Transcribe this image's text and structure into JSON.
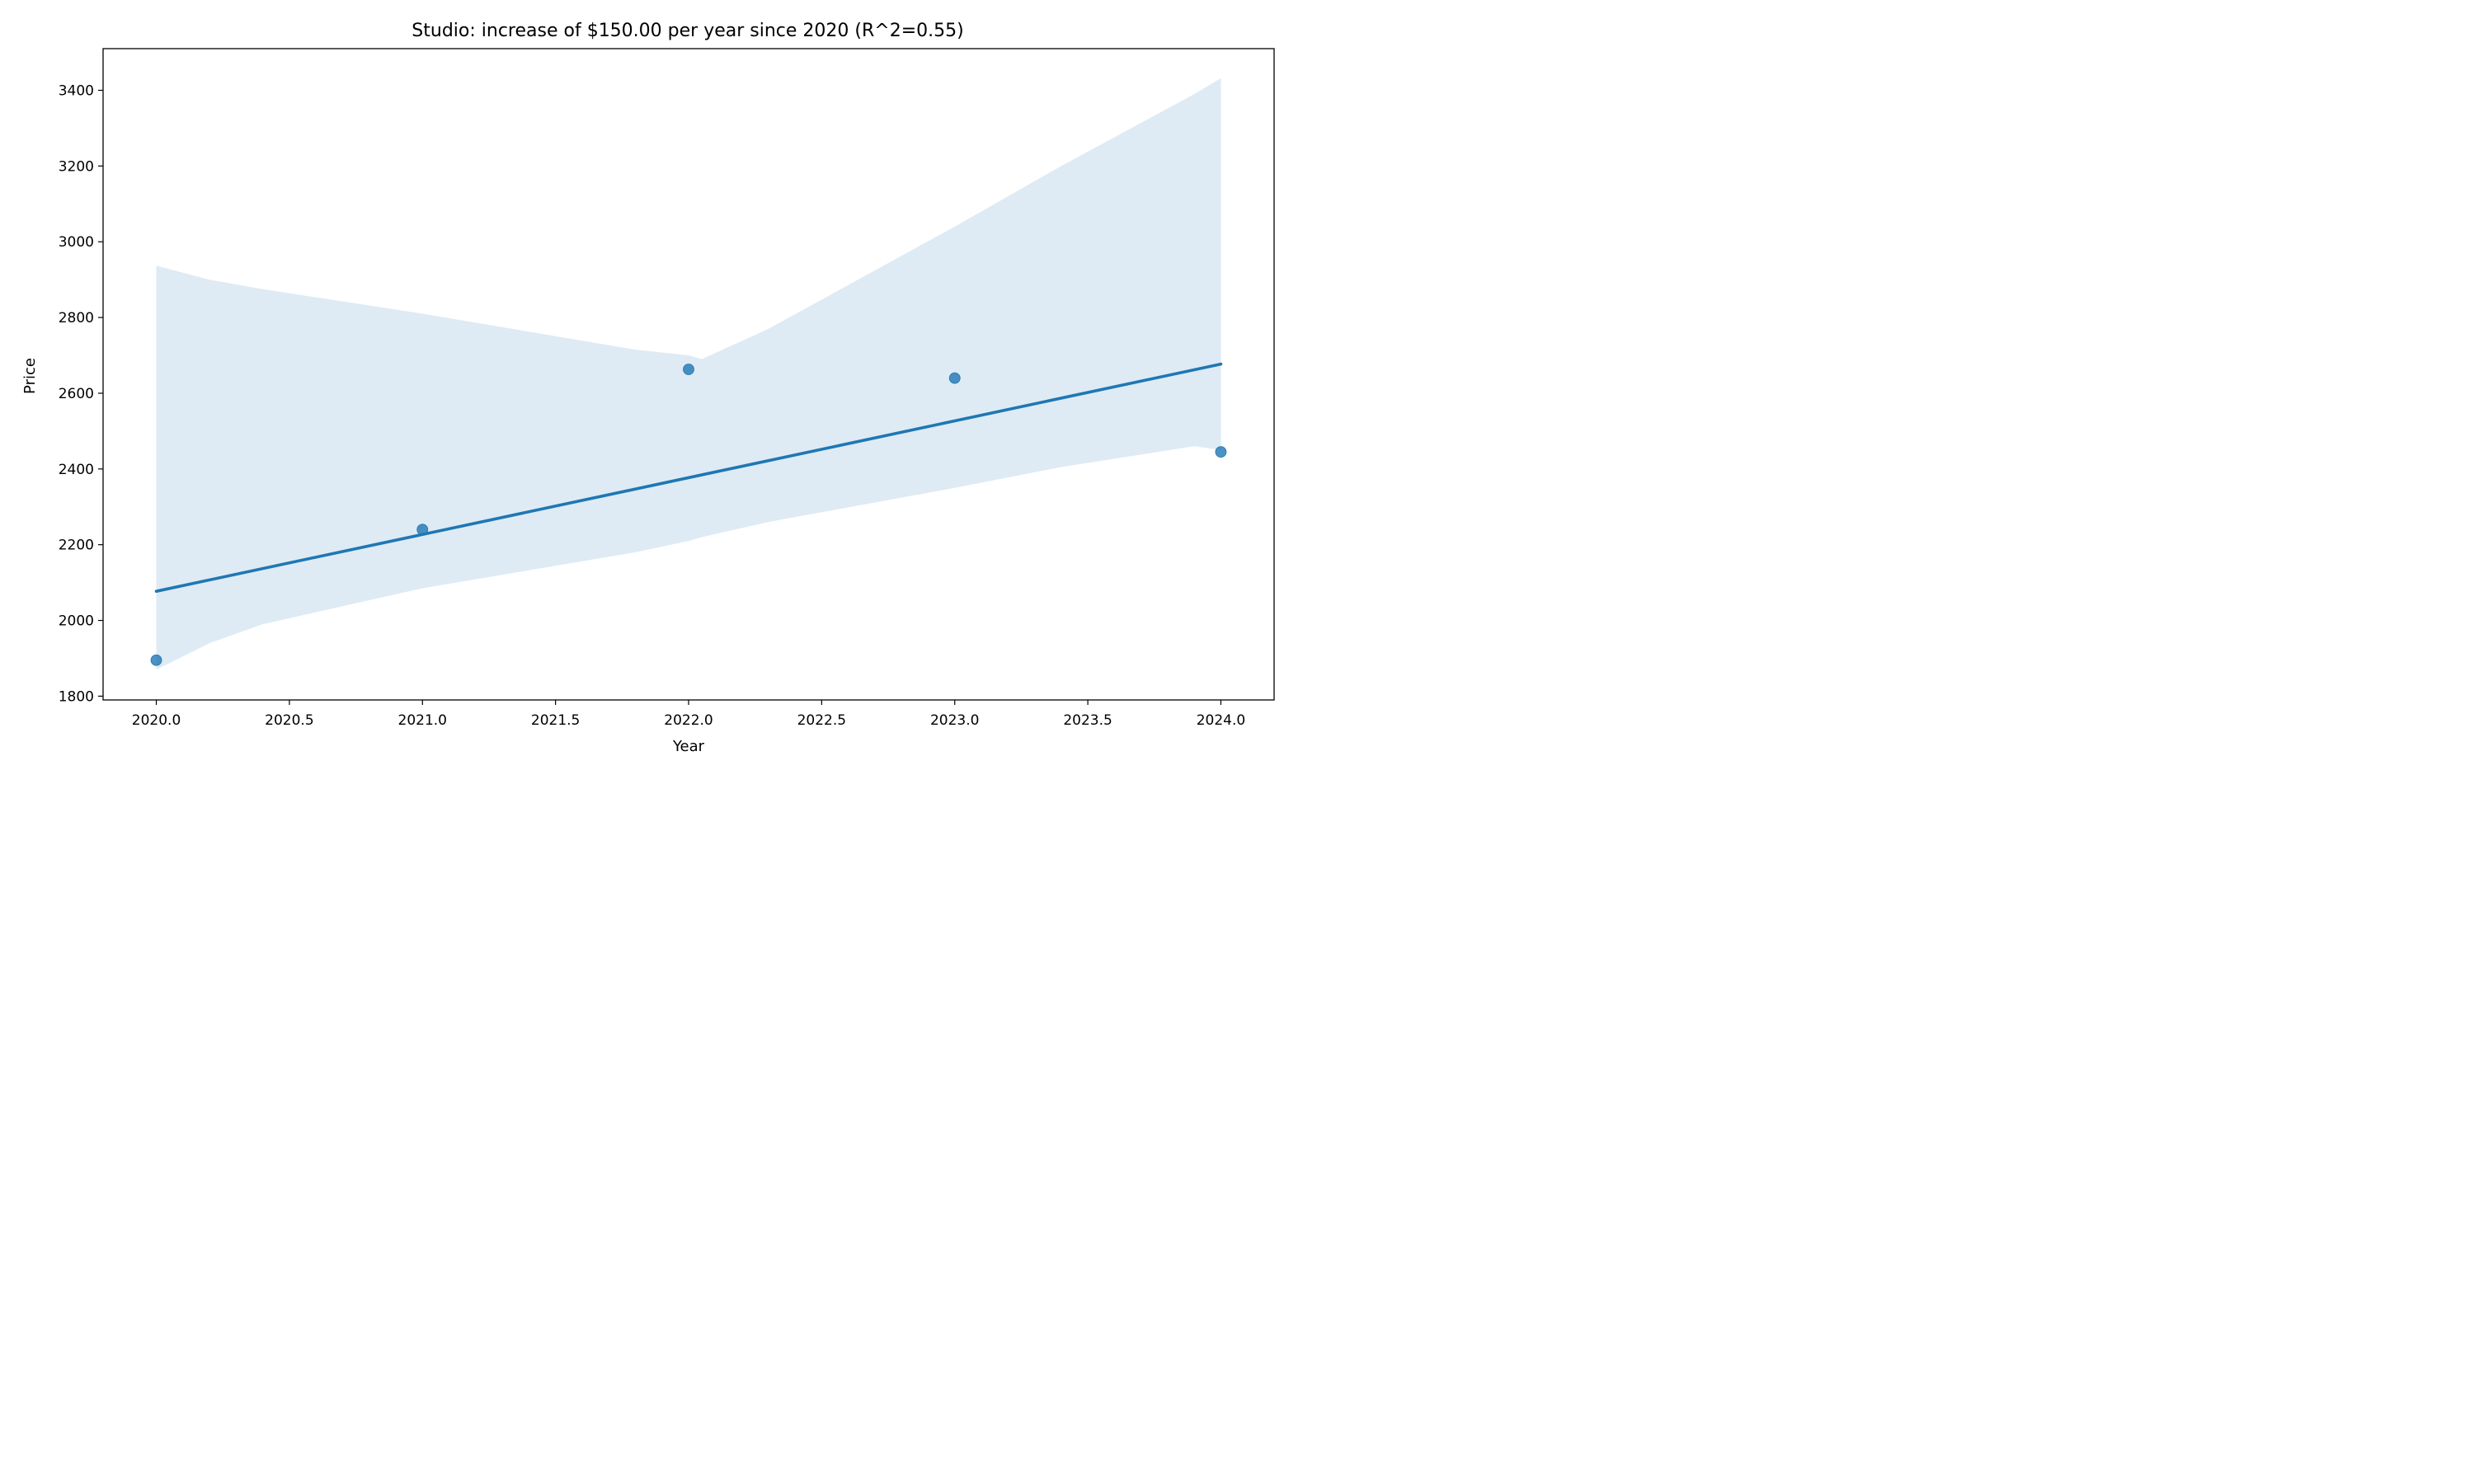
{
  "chart_data": {
    "type": "scatter",
    "title": "Studio: increase of $150.00 per year since 2020 (R^2=0.55)",
    "xlabel": "Year",
    "ylabel": "Price",
    "xlim": [
      2019.8,
      2024.2
    ],
    "ylim": [
      1790,
      3510
    ],
    "x_ticks": [
      2020.0,
      2020.5,
      2021.0,
      2021.5,
      2022.0,
      2022.5,
      2023.0,
      2023.5,
      2024.0
    ],
    "x_tick_labels": [
      "2020.0",
      "2020.5",
      "2021.0",
      "2021.5",
      "2022.0",
      "2022.5",
      "2023.0",
      "2023.5",
      "2024.0"
    ],
    "y_ticks": [
      1800,
      2000,
      2200,
      2400,
      2600,
      2800,
      3000,
      3200,
      3400
    ],
    "y_tick_labels": [
      "1800",
      "2000",
      "2200",
      "2400",
      "2600",
      "2800",
      "3000",
      "3200",
      "3400"
    ],
    "grid": false,
    "series": [
      {
        "x": [
          2020,
          2021,
          2022,
          2023,
          2024
        ],
        "y": [
          1895,
          2240,
          2663,
          2640,
          2445
        ],
        "color": "#1f77b4"
      }
    ],
    "regression_line": {
      "x": [
        2020,
        2024
      ],
      "y": [
        2077,
        2677
      ],
      "color": "#1f77b4"
    },
    "confidence_band": {
      "color": "#1f77b4",
      "x": [
        2020.0,
        2020.2,
        2020.4,
        2021.0,
        2021.8,
        2022.0,
        2022.05,
        2022.3,
        2023.0,
        2023.4,
        2023.9,
        2024.0
      ],
      "upper": [
        2937,
        2900,
        2875,
        2810,
        2715,
        2700,
        2690,
        2770,
        3040,
        3200,
        3390,
        3432
      ],
      "lower": [
        1870,
        1940,
        1990,
        2085,
        2180,
        2210,
        2220,
        2260,
        2350,
        2405,
        2460,
        2450
      ]
    }
  }
}
